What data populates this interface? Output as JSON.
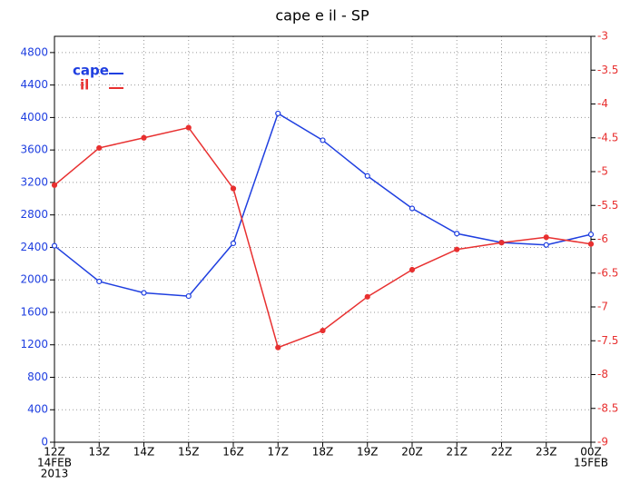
{
  "chart_data": {
    "type": "line",
    "title": "cape e il - SP",
    "categories": [
      "12Z",
      "13Z",
      "14Z",
      "15Z",
      "16Z",
      "17Z",
      "18Z",
      "19Z",
      "20Z",
      "21Z",
      "22Z",
      "23Z",
      "00Z"
    ],
    "date_labels": {
      "start_day": "14FEB",
      "start_year": "2013",
      "end_day": "15FEB"
    },
    "series": [
      {
        "name": "cape",
        "color": "#1f3fe0",
        "values": [
          2420,
          1980,
          1840,
          1800,
          2450,
          4050,
          3720,
          3280,
          2880,
          2570,
          2460,
          2430,
          2560
        ]
      },
      {
        "name": "il",
        "color": "#e83030",
        "axis": "y2",
        "values": [
          -5.2,
          -4.65,
          -4.5,
          -4.35,
          -5.25,
          -7.6,
          -7.35,
          -6.85,
          -6.45,
          -6.15,
          -6.05,
          -5.97,
          -6.07
        ]
      }
    ],
    "ylim": [
      0,
      5000
    ],
    "yticks": [
      0,
      400,
      800,
      1200,
      1600,
      2000,
      2400,
      2800,
      3200,
      3600,
      4000,
      4400,
      4800
    ],
    "y2lim": [
      -9,
      -3
    ],
    "y2ticks": [
      -9,
      -8.5,
      -8,
      -7.5,
      -7,
      -6.5,
      -6,
      -5.5,
      -5,
      -4.5,
      -4,
      -3.5,
      -3
    ],
    "grid": true
  }
}
